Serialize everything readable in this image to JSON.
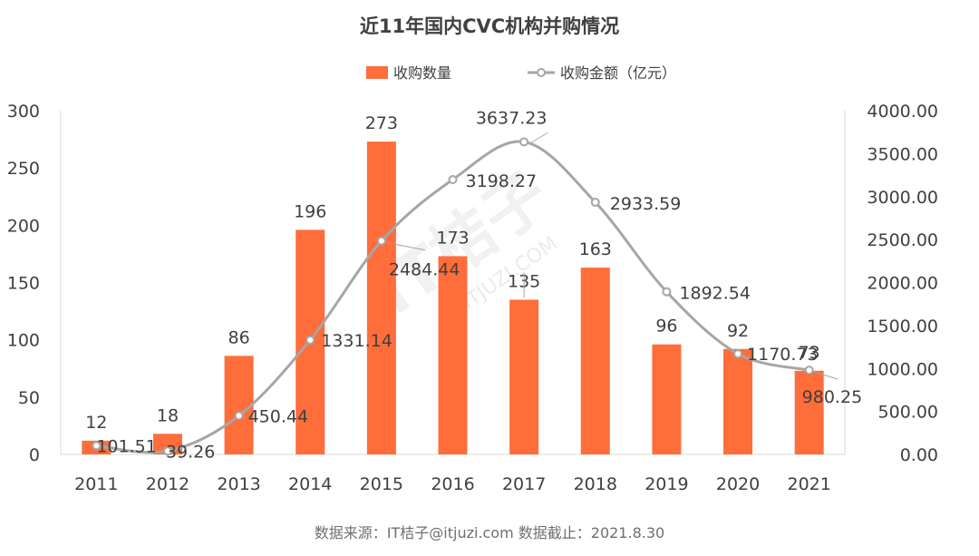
{
  "title": "近11年国内CVC机构并购情况",
  "source_note": "数据来源：IT桔子@itjuzi.com  数据截止：2021.8.30",
  "watermark": {
    "main": "IT桔子",
    "sub": "ITJUZI.COM"
  },
  "colors": {
    "bar": "#ff6d3b",
    "line": "#a6a6a6",
    "axis": "#d9d9d9",
    "text": "#404040"
  },
  "legend": {
    "bar_label": "收购数量",
    "line_label": "收购金额（亿元）",
    "position": "top-center"
  },
  "chart_data": {
    "type": "bar",
    "title": "近11年国内CVC机构并购情况",
    "categories": [
      "2011",
      "2012",
      "2013",
      "2014",
      "2015",
      "2016",
      "2017",
      "2018",
      "2019",
      "2020",
      "2021"
    ],
    "series": [
      {
        "name": "收购数量",
        "type": "bar",
        "axis": "left",
        "values": [
          12,
          18,
          86,
          196,
          273,
          173,
          135,
          163,
          96,
          92,
          73
        ]
      },
      {
        "name": "收购金额（亿元）",
        "type": "line",
        "smooth": true,
        "axis": "right",
        "values": [
          101.51,
          39.26,
          450.44,
          1331.14,
          2484.44,
          3198.27,
          3637.23,
          2933.59,
          1892.54,
          1170.73,
          980.25
        ]
      }
    ],
    "left_axis": {
      "ylim": [
        0,
        300
      ],
      "ticks": [
        "0",
        "50",
        "100",
        "150",
        "200",
        "250",
        "300"
      ]
    },
    "right_axis": {
      "ylim": [
        0,
        4000
      ],
      "ticks": [
        "0.00",
        "500.00",
        "1000.00",
        "1500.00",
        "2000.00",
        "2500.00",
        "3000.00",
        "3500.00",
        "4000.00"
      ]
    },
    "bar_labels": [
      "12",
      "18",
      "86",
      "196",
      "273",
      "173",
      "135",
      "163",
      "96",
      "92",
      "73"
    ],
    "line_labels": [
      "101.51",
      "39.26",
      "450.44",
      "1331.14",
      "2484.44",
      "3198.27",
      "3637.23",
      "2933.59",
      "1892.54",
      "1170.73",
      "980.25"
    ],
    "grid": false
  }
}
